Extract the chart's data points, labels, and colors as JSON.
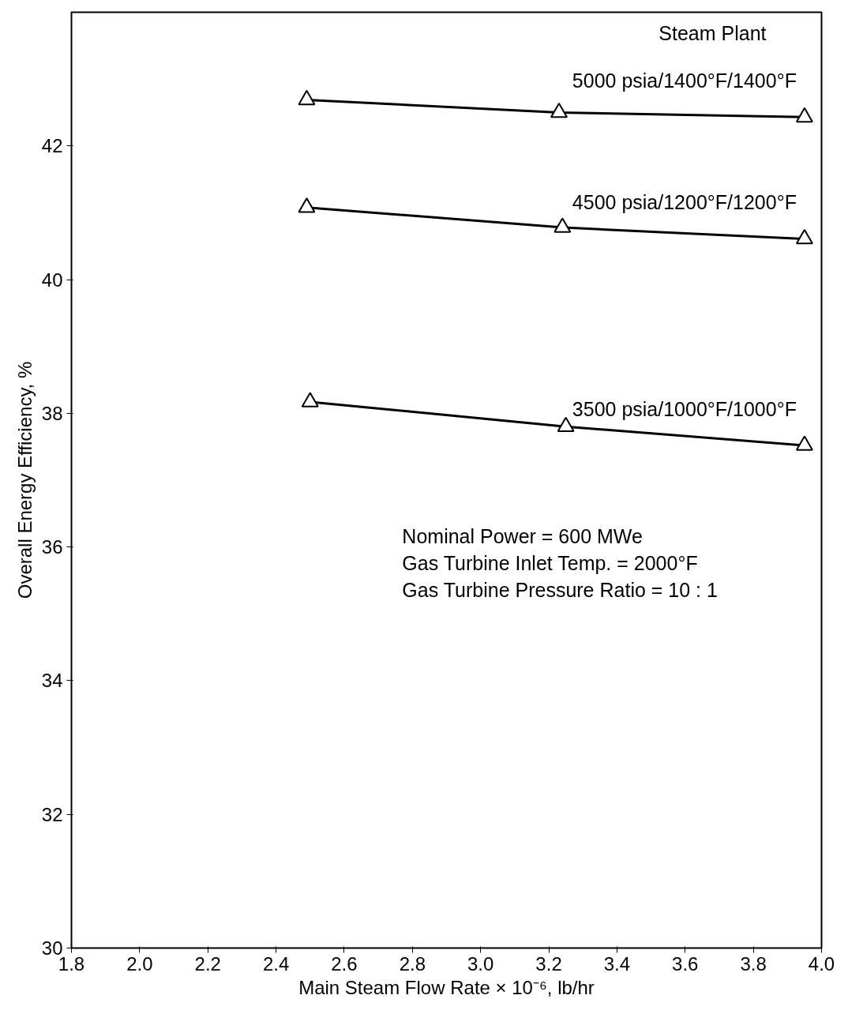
{
  "chart_data": {
    "type": "line",
    "xlabel": "Main Steam Flow Rate × 10⁻⁶, lb/hr",
    "ylabel": "Overall Energy Efficiency, %",
    "xlim": [
      1.8,
      4.0
    ],
    "ylim": [
      30,
      44
    ],
    "xticks": [
      1.8,
      {
        "value": 2.0,
        "label": "2.0"
      },
      2.2,
      2.4,
      2.6,
      2.8,
      {
        "value": 3.0,
        "label": "3.0"
      },
      3.2,
      3.4,
      3.6,
      3.8,
      {
        "value": 4.0,
        "label": "4.0"
      }
    ],
    "yticks": [
      30,
      32,
      34,
      36,
      38,
      40,
      42
    ],
    "marker": "triangle",
    "line_style": "solid",
    "grid": false,
    "series": [
      {
        "name": "5000 psia/1400°F/1400°F",
        "color": "#000000",
        "x": [
          2.49,
          3.23,
          3.95
        ],
        "values": [
          42.69,
          42.5,
          42.43
        ]
      },
      {
        "name": "4500 psia/1200°F/1200°F",
        "color": "#000000",
        "x": [
          2.49,
          3.24,
          3.95
        ],
        "values": [
          41.08,
          40.78,
          40.61
        ]
      },
      {
        "name": "3500 psia/1000°F/1000°F",
        "color": "#000000",
        "x": [
          2.5,
          3.25,
          3.95
        ],
        "values": [
          38.17,
          37.8,
          37.52
        ]
      }
    ],
    "annotations": [
      "Steam Plant",
      "Nominal Power  =  600 MWe",
      "Gas Turbine Inlet Temp.  =  2000°F",
      "Gas Turbine Pressure Ratio  =  10 : 1"
    ]
  }
}
